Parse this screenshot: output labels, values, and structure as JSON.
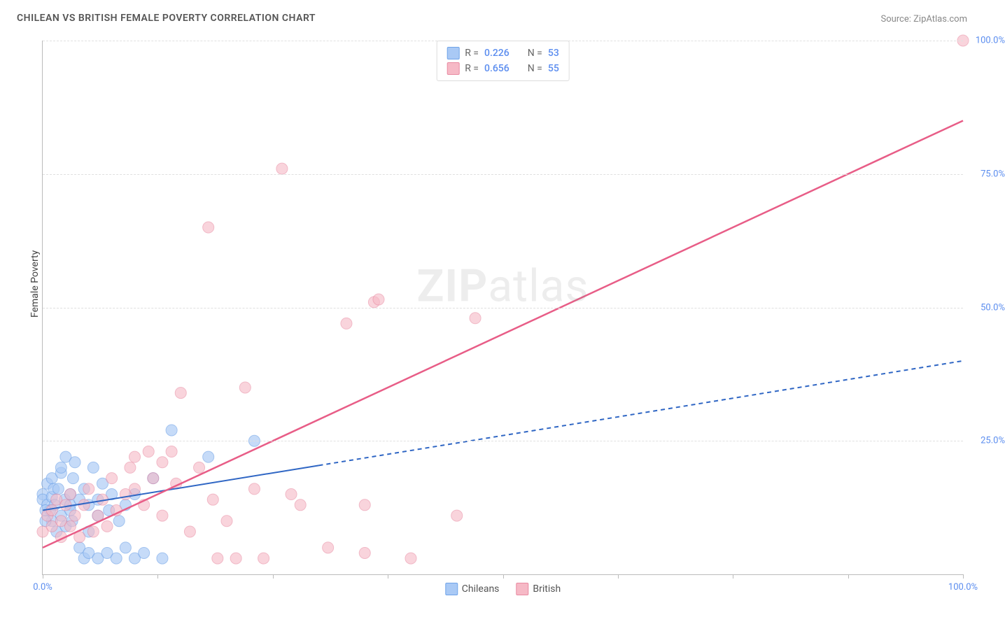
{
  "chart": {
    "title": "CHILEAN VS BRITISH FEMALE POVERTY CORRELATION CHART",
    "source": "Source: ZipAtlas.com",
    "y_axis_label": "Female Poverty",
    "watermark_bold": "ZIP",
    "watermark_light": "atlas",
    "type": "scatter",
    "xlim": [
      0,
      100
    ],
    "ylim": [
      0,
      100
    ],
    "x_ticks": [
      0,
      12.5,
      25,
      37.5,
      50,
      62.5,
      75,
      87.5,
      100
    ],
    "x_tick_labels": {
      "0": "0.0%",
      "100": "100.0%"
    },
    "y_ticks": [
      25,
      50,
      75,
      100
    ],
    "y_tick_labels": {
      "25": "25.0%",
      "50": "50.0%",
      "75": "75.0%",
      "100": "100.0%"
    },
    "background_color": "#ffffff",
    "grid_color": "#e0e0e0",
    "axis_color": "#bbbbbb",
    "tick_label_color": "#5b8def",
    "title_color": "#555555",
    "title_fontsize": 14,
    "label_fontsize": 14,
    "tick_fontsize": 13,
    "legend_top": [
      {
        "swatch_fill": "#a9c9f5",
        "swatch_border": "#6fa3e8",
        "r_label": "R =",
        "r_val": "0.226",
        "n_label": "N =",
        "n_val": "53"
      },
      {
        "swatch_fill": "#f6b9c6",
        "swatch_border": "#e98aa1",
        "r_label": "R =",
        "r_val": "0.656",
        "n_label": "N =",
        "n_val": "55"
      }
    ],
    "legend_bottom": [
      {
        "swatch_fill": "#a9c9f5",
        "swatch_border": "#6fa3e8",
        "label": "Chileans"
      },
      {
        "swatch_fill": "#f6b9c6",
        "swatch_border": "#e98aa1",
        "label": "British"
      }
    ],
    "series": [
      {
        "name": "Chileans",
        "marker_fill": "#a9c9f5",
        "marker_stroke": "#6fa3e8",
        "marker_opacity": 0.65,
        "marker_r": 8,
        "trend_color": "#2f66c4",
        "trend_solid_end_x": 30,
        "trend_dash": "6,5",
        "trend_width": 2,
        "trend": {
          "x1": 0,
          "y1": 12,
          "x2": 100,
          "y2": 40
        },
        "points": [
          [
            0,
            15
          ],
          [
            0,
            14
          ],
          [
            0.5,
            13
          ],
          [
            0.5,
            17
          ],
          [
            0.8,
            12
          ],
          [
            1,
            18
          ],
          [
            1,
            10
          ],
          [
            1,
            14.5
          ],
          [
            1.2,
            16
          ],
          [
            1.3,
            13
          ],
          [
            0.3,
            10
          ],
          [
            0.3,
            12
          ],
          [
            1.5,
            8
          ],
          [
            1.7,
            16
          ],
          [
            2,
            19
          ],
          [
            2,
            20
          ],
          [
            2,
            11
          ],
          [
            2.4,
            14
          ],
          [
            2.5,
            22
          ],
          [
            2.5,
            9
          ],
          [
            3,
            13
          ],
          [
            3,
            15
          ],
          [
            3,
            12
          ],
          [
            3.2,
            10
          ],
          [
            3.3,
            18
          ],
          [
            3.5,
            21
          ],
          [
            4,
            5
          ],
          [
            4,
            14
          ],
          [
            4.5,
            16
          ],
          [
            4.5,
            3
          ],
          [
            5,
            8
          ],
          [
            5,
            13
          ],
          [
            5,
            4
          ],
          [
            5.5,
            20
          ],
          [
            6,
            11
          ],
          [
            6,
            3
          ],
          [
            6,
            14
          ],
          [
            6.5,
            17
          ],
          [
            7,
            4
          ],
          [
            7.2,
            12
          ],
          [
            7.5,
            15
          ],
          [
            8,
            3
          ],
          [
            8.3,
            10
          ],
          [
            9,
            5
          ],
          [
            9,
            13
          ],
          [
            10,
            3
          ],
          [
            10,
            15
          ],
          [
            11,
            4
          ],
          [
            12,
            18
          ],
          [
            13,
            3
          ],
          [
            14,
            27
          ],
          [
            18,
            22
          ],
          [
            23,
            25
          ]
        ]
      },
      {
        "name": "British",
        "marker_fill": "#f6b9c6",
        "marker_stroke": "#e98aa1",
        "marker_opacity": 0.6,
        "marker_r": 8,
        "trend_color": "#e85d87",
        "trend_dash": "",
        "trend_width": 2.5,
        "trend": {
          "x1": 0,
          "y1": 5,
          "x2": 100,
          "y2": 85
        },
        "points": [
          [
            0,
            8
          ],
          [
            0.5,
            11
          ],
          [
            1,
            9
          ],
          [
            1,
            12
          ],
          [
            1.5,
            14
          ],
          [
            2,
            10
          ],
          [
            2,
            7
          ],
          [
            2.5,
            13
          ],
          [
            3,
            15
          ],
          [
            3,
            9
          ],
          [
            3.5,
            11
          ],
          [
            4,
            7
          ],
          [
            4.5,
            13
          ],
          [
            5,
            16
          ],
          [
            5.5,
            8
          ],
          [
            6,
            11
          ],
          [
            6.5,
            14
          ],
          [
            7,
            9
          ],
          [
            7.5,
            18
          ],
          [
            8,
            12
          ],
          [
            9,
            15
          ],
          [
            9.5,
            20
          ],
          [
            10,
            16
          ],
          [
            10,
            22
          ],
          [
            11,
            13
          ],
          [
            11.5,
            23
          ],
          [
            12,
            18
          ],
          [
            13,
            11
          ],
          [
            13,
            21
          ],
          [
            14,
            23
          ],
          [
            14.5,
            17
          ],
          [
            15,
            34
          ],
          [
            16,
            8
          ],
          [
            17,
            20
          ],
          [
            18,
            65
          ],
          [
            18.5,
            14
          ],
          [
            19,
            3
          ],
          [
            20,
            10
          ],
          [
            21,
            3
          ],
          [
            22,
            35
          ],
          [
            23,
            16
          ],
          [
            24,
            3
          ],
          [
            26,
            76
          ],
          [
            27,
            15
          ],
          [
            28,
            13
          ],
          [
            31,
            5
          ],
          [
            33,
            47
          ],
          [
            35,
            4
          ],
          [
            35,
            13
          ],
          [
            36,
            51
          ],
          [
            36.5,
            51.5
          ],
          [
            40,
            3
          ],
          [
            45,
            11
          ],
          [
            47,
            48
          ],
          [
            100,
            100
          ]
        ]
      }
    ]
  }
}
